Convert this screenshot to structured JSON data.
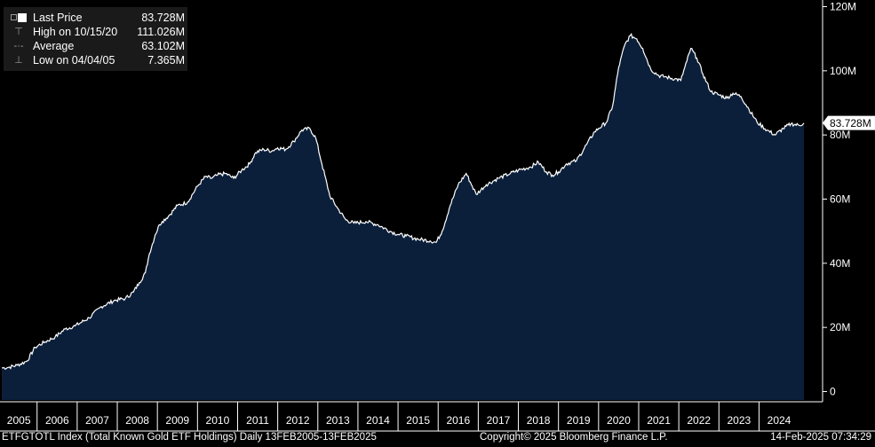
{
  "legend": {
    "last_price_label": "Last Price",
    "last_price_value": "83.728M",
    "high_label": "High on 10/15/20",
    "high_value": "111.026M",
    "average_label": "Average",
    "average_value": "63.102M",
    "low_label": "Low on 04/04/05",
    "low_value": "7.365M"
  },
  "footer": {
    "index_description": "ETFGTOTL Index (Total Known Gold ETF Holdings)  Daily 13FEB2005-13FEB2025",
    "copyright": "Copyright© 2025 Bloomberg Finance L.P.",
    "timestamp": "14-Feb-2025 07:34:29"
  },
  "colors": {
    "background": "#000000",
    "area_fill": "#0b1f3a",
    "line": "#ffffff",
    "label_bg": "#ffffff"
  },
  "chart_data": {
    "type": "area",
    "title": "",
    "xlabel": "",
    "ylabel": "",
    "x_ticks": [
      "2005",
      "2006",
      "2007",
      "2008",
      "2009",
      "2010",
      "2011",
      "2012",
      "2013",
      "2014",
      "2015",
      "2016",
      "2017",
      "2018",
      "2019",
      "2020",
      "2021",
      "2022",
      "2023",
      "2024"
    ],
    "y_ticks": [
      "0",
      "20M",
      "40M",
      "60M",
      "80M",
      "100M",
      "120M"
    ],
    "y_tick_values": [
      0,
      20,
      40,
      60,
      80,
      100,
      120
    ],
    "xlim": [
      2005.12,
      2025.12
    ],
    "ylim": [
      -3,
      121
    ],
    "grid": false,
    "last_value_label": "83.728M",
    "series": [
      {
        "name": "Last Price",
        "unit": "M",
        "x": [
          2005.12,
          2005.26,
          2005.5,
          2005.75,
          2005.95,
          2006.2,
          2006.45,
          2006.7,
          2006.95,
          2007.3,
          2007.6,
          2007.95,
          2008.2,
          2008.4,
          2008.55,
          2008.7,
          2008.8,
          2008.95,
          2009.05,
          2009.12,
          2009.3,
          2009.5,
          2009.75,
          2010.0,
          2010.2,
          2010.35,
          2010.5,
          2010.7,
          2010.9,
          2011.1,
          2011.3,
          2011.45,
          2011.65,
          2011.85,
          2012.0,
          2012.2,
          2012.4,
          2012.6,
          2012.8,
          2012.95,
          2013.1,
          2013.3,
          2013.5,
          2013.7,
          2013.9,
          2014.2,
          2014.5,
          2014.8,
          2015.0,
          2015.2,
          2015.5,
          2015.8,
          2015.95,
          2016.1,
          2016.3,
          2016.5,
          2016.7,
          2016.85,
          2016.95,
          2017.2,
          2017.5,
          2017.8,
          2018.0,
          2018.3,
          2018.5,
          2018.7,
          2018.85,
          2019.0,
          2019.2,
          2019.45,
          2019.7,
          2019.9,
          2020.0,
          2020.2,
          2020.35,
          2020.5,
          2020.65,
          2020.79,
          2020.95,
          2021.1,
          2021.3,
          2021.5,
          2021.7,
          2021.9,
          2022.05,
          2022.2,
          2022.3,
          2022.45,
          2022.6,
          2022.8,
          2023.0,
          2023.2,
          2023.35,
          2023.55,
          2023.75,
          2023.95,
          2024.2,
          2024.4,
          2024.6,
          2024.8,
          2025.0,
          2025.12
        ],
        "values": [
          7.365,
          7.5,
          8.2,
          9.5,
          13.8,
          15.5,
          17.0,
          19.5,
          20.5,
          23.0,
          26.5,
          28.5,
          29.0,
          31.0,
          34.0,
          37.0,
          43.0,
          49.0,
          52.0,
          53.0,
          55.0,
          58.0,
          59.0,
          64.0,
          67.0,
          66.5,
          67.5,
          68.0,
          66.5,
          69.0,
          71.0,
          74.5,
          75.5,
          75.0,
          76.0,
          75.5,
          78.0,
          81.5,
          82.0,
          79.0,
          71.0,
          61.0,
          57.0,
          53.5,
          52.5,
          53.0,
          52.0,
          50.0,
          49.0,
          48.5,
          47.5,
          47.0,
          46.5,
          50.0,
          58.0,
          64.5,
          68.0,
          64.0,
          61.5,
          64.5,
          66.5,
          68.0,
          69.0,
          70.0,
          71.5,
          68.5,
          67.5,
          68.5,
          71.0,
          72.0,
          77.0,
          81.0,
          82.0,
          84.0,
          89.0,
          101.0,
          108.0,
          111.026,
          110.0,
          107.0,
          100.5,
          98.5,
          98.0,
          97.5,
          97.0,
          103.0,
          107.0,
          104.0,
          99.0,
          93.5,
          92.5,
          91.5,
          93.0,
          92.0,
          88.0,
          84.0,
          81.5,
          80.0,
          82.0,
          83.5,
          83.0,
          83.728
        ]
      }
    ]
  }
}
